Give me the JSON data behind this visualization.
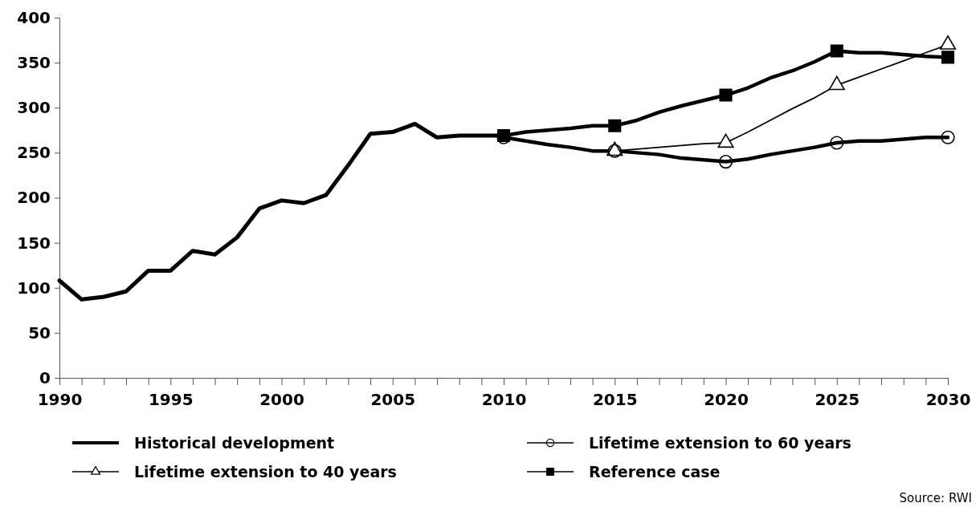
{
  "chart_data": {
    "type": "line",
    "xlim": [
      1990,
      2030
    ],
    "xticks": [
      1990,
      {
        "value": 1991,
        "label": null
      },
      {
        "value": 1992,
        "label": null
      },
      {
        "value": 1993,
        "label": null
      },
      {
        "value": 1994,
        "label": null
      },
      1995,
      {
        "value": 1996,
        "label": null
      },
      {
        "value": 1997,
        "label": null
      },
      {
        "value": 1998,
        "label": null
      },
      {
        "value": 1999,
        "label": null
      },
      2000,
      {
        "value": 2001,
        "label": null
      },
      {
        "value": 2002,
        "label": null
      },
      {
        "value": 2003,
        "label": null
      },
      {
        "value": 2004,
        "label": null
      },
      2005,
      {
        "value": 2006,
        "label": null
      },
      {
        "value": 2007,
        "label": null
      },
      {
        "value": 2008,
        "label": null
      },
      {
        "value": 2009,
        "label": null
      },
      2010,
      {
        "value": 2011,
        "label": null
      },
      {
        "value": 2012,
        "label": null
      },
      {
        "value": 2013,
        "label": null
      },
      {
        "value": 2014,
        "label": null
      },
      2015,
      {
        "value": 2016,
        "label": null
      },
      {
        "value": 2017,
        "label": null
      },
      {
        "value": 2018,
        "label": null
      },
      {
        "value": 2019,
        "label": null
      },
      2020,
      {
        "value": 2021,
        "label": null
      },
      {
        "value": 2022,
        "label": null
      },
      {
        "value": 2023,
        "label": null
      },
      {
        "value": 2024,
        "label": null
      },
      2025,
      {
        "value": 2026,
        "label": null
      },
      {
        "value": 2027,
        "label": null
      },
      {
        "value": 2028,
        "label": null
      },
      {
        "value": 2029,
        "label": null
      },
      2030
    ],
    "ylim": [
      0,
      400
    ],
    "yticks": [
      0,
      50,
      100,
      150,
      200,
      250,
      300,
      350,
      400
    ],
    "grid": false,
    "legend": "bottom",
    "line_style": "solid",
    "series": [
      {
        "name": "Historical development",
        "color": "#000000",
        "marker": "none",
        "x": [
          1990,
          1991,
          1992,
          1993,
          1994,
          1995,
          1996,
          1997,
          1998,
          1999,
          2000,
          2001,
          2002,
          2003,
          2004,
          2005,
          2006,
          2007,
          2008,
          2009,
          2010
        ],
        "values": [
          108,
          87,
          90,
          96,
          119,
          119,
          141,
          137,
          156,
          188,
          197,
          194,
          203,
          236,
          271,
          273,
          282,
          267,
          269,
          269,
          269
        ]
      },
      {
        "color": "#000000",
        "marker": "none",
        "x": [
          2010,
          2011,
          2012,
          2013,
          2014,
          2015,
          2016,
          2017,
          2018,
          2019,
          2020,
          2021,
          2022,
          2023,
          2024,
          2025,
          2026,
          2027,
          2028,
          2029,
          2030
        ],
        "values": [
          267,
          263,
          259,
          256,
          252,
          252,
          250,
          248,
          244,
          242,
          240,
          243,
          248,
          252,
          256,
          261,
          263,
          263,
          265,
          267,
          267
        ]
      },
      {
        "color": "#000000",
        "marker": "none",
        "x": [
          2015,
          2016,
          2017,
          2018,
          2019,
          2020,
          2021,
          2022,
          2023,
          2024,
          2025,
          2026,
          2027,
          2028,
          2029,
          2030
        ],
        "values": [
          252,
          254,
          256,
          258,
          260,
          261,
          273,
          286,
          299,
          311,
          325,
          334,
          343,
          352,
          361,
          370
        ]
      },
      {
        "color": "#000000",
        "marker": "none",
        "x": [
          2010,
          2011,
          2012,
          2013,
          2014,
          2015,
          2016,
          2017,
          2018,
          2019,
          2020,
          2021,
          2022,
          2023,
          2024,
          2025,
          2026,
          2027,
          2028,
          2029,
          2030
        ],
        "values": [
          269,
          273,
          275,
          277,
          280,
          280,
          286,
          295,
          302,
          308,
          314,
          322,
          333,
          341,
          351,
          363,
          361,
          361,
          359,
          357,
          356
        ]
      },
      {
        "type": "scatter",
        "name": "Lifetime extension to 60 years",
        "color": "#000000",
        "marker": "circle",
        "x": [
          2010,
          2015,
          2020,
          2025,
          2030
        ],
        "values": [
          267,
          252,
          240,
          261,
          267
        ]
      },
      {
        "type": "scatter",
        "name": "Lifetime extension to 40 years",
        "color": "#000000",
        "marker": "triangle",
        "x": [
          2015,
          2020,
          2025,
          2030
        ],
        "values": [
          252,
          261,
          325,
          370
        ]
      },
      {
        "type": "scatter",
        "name": "Reference case",
        "color": "#000000",
        "marker": "square",
        "x": [
          2010,
          2015,
          2020,
          2025,
          2030
        ],
        "values": [
          269,
          280,
          314,
          363,
          356
        ]
      }
    ],
    "annotations": [
      "Source: RWI"
    ]
  }
}
